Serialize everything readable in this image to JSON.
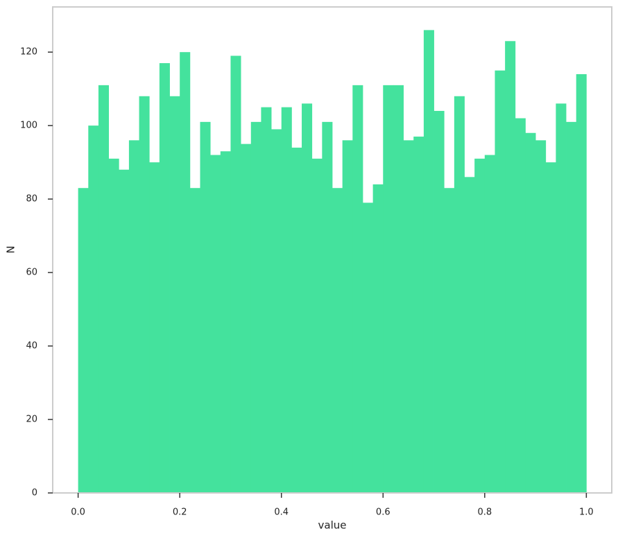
{
  "chart_data": {
    "type": "histogram",
    "xlabel": "value",
    "ylabel": "N",
    "color": "#44e29d",
    "bins": [
      0.0,
      0.02,
      0.04,
      0.06,
      0.08,
      0.1,
      0.12,
      0.14,
      0.16,
      0.18,
      0.2,
      0.22,
      0.24,
      0.26,
      0.28,
      0.3,
      0.32,
      0.34,
      0.36,
      0.38,
      0.4,
      0.42,
      0.44,
      0.46,
      0.48,
      0.5,
      0.52,
      0.54,
      0.56,
      0.58,
      0.6,
      0.62,
      0.64,
      0.66,
      0.68,
      0.7,
      0.72,
      0.74,
      0.76,
      0.78,
      0.8,
      0.82,
      0.84,
      0.86,
      0.88,
      0.9,
      0.92,
      0.94,
      0.96,
      0.98,
      1.0
    ],
    "values": [
      83,
      100,
      111,
      91,
      88,
      96,
      108,
      90,
      117,
      108,
      120,
      83,
      101,
      92,
      93,
      119,
      95,
      101,
      105,
      99,
      105,
      94,
      106,
      91,
      101,
      83,
      96,
      111,
      79,
      84,
      111,
      111,
      96,
      97,
      126,
      104,
      83,
      108,
      86,
      91,
      92,
      115,
      123,
      102,
      98,
      96,
      90,
      106,
      101,
      114
    ],
    "xlim": [
      -0.05,
      1.05
    ],
    "ylim": [
      0,
      132.3
    ],
    "xticks": [
      {
        "value": 0,
        "label": "0.0"
      },
      0.2,
      0.4,
      0.6,
      0.8,
      {
        "value": 1,
        "label": "1.0"
      }
    ],
    "yticks": [
      0,
      20,
      40,
      60,
      80,
      100,
      120
    ]
  }
}
